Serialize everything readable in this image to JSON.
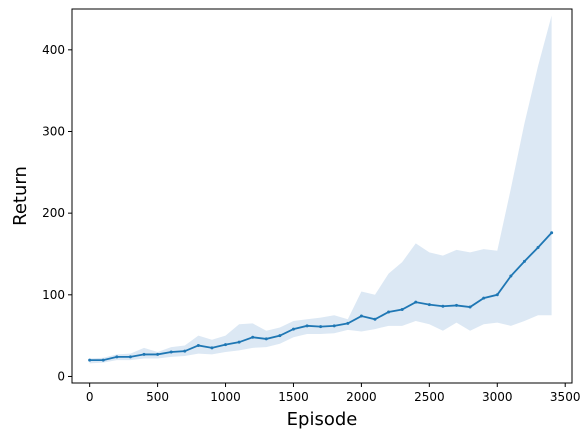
{
  "chart_data": {
    "type": "line",
    "xlabel": "Episode",
    "ylabel": "Return",
    "xlim": [
      -130,
      3550
    ],
    "ylim": [
      -8,
      450
    ],
    "xticks": [
      0,
      500,
      1000,
      1500,
      2000,
      2500,
      3000,
      3500
    ],
    "yticks": [
      0,
      100,
      200,
      300,
      400
    ],
    "grid": false,
    "legend": "none",
    "colors": {
      "line": "#1f77b4",
      "band": "#dce8f4"
    },
    "series": [
      {
        "x": [
          0,
          100,
          200,
          300,
          400,
          500,
          600,
          700,
          800,
          900,
          1000,
          1100,
          1200,
          1300,
          1400,
          1500,
          1600,
          1700,
          1800,
          1900,
          2000,
          2100,
          2200,
          2300,
          2400,
          2500,
          2600,
          2700,
          2800,
          2900,
          3000,
          3100,
          3200,
          3300,
          3400
        ],
        "y": [
          20,
          20,
          24,
          24,
          27,
          27,
          30,
          31,
          38,
          35,
          39,
          42,
          48,
          46,
          50,
          58,
          62,
          61,
          62,
          65,
          74,
          70,
          79,
          82,
          91,
          88,
          86,
          87,
          85,
          96,
          100,
          123,
          141,
          158,
          176
        ],
        "lower": [
          16,
          17,
          20,
          20,
          22,
          22,
          24,
          25,
          28,
          27,
          30,
          32,
          35,
          36,
          40,
          48,
          52,
          52,
          53,
          57,
          55,
          58,
          62,
          62,
          68,
          64,
          56,
          66,
          56,
          64,
          66,
          62,
          68,
          75,
          75
        ],
        "upper": [
          22,
          23,
          27,
          28,
          35,
          30,
          36,
          38,
          50,
          45,
          50,
          64,
          65,
          56,
          60,
          68,
          70,
          72,
          75,
          70,
          104,
          100,
          126,
          140,
          163,
          152,
          148,
          155,
          152,
          156,
          154,
          230,
          310,
          380,
          442
        ]
      }
    ]
  }
}
